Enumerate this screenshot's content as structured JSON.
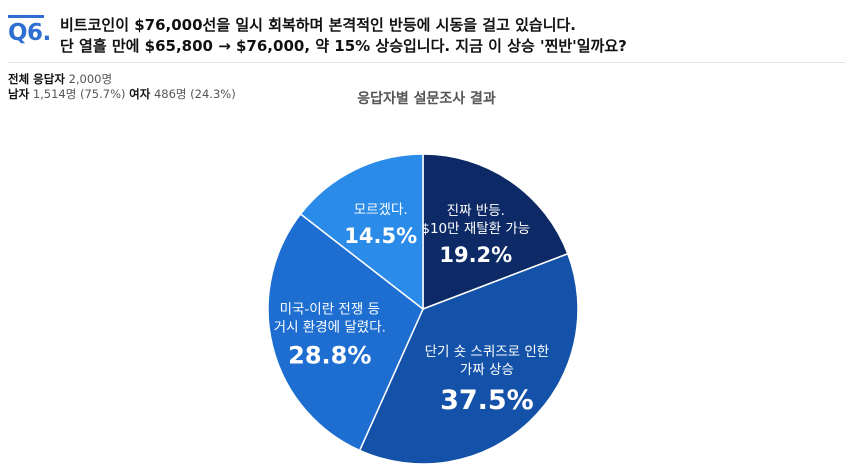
{
  "question": {
    "number": "Q6.",
    "line1": "비트코인이 $76,000선을 일시 회복하며 본격적인 반등에 시동을 걸고 있습니다.",
    "line2": "단 열흘 만에 $65,800 → $76,000, 약 15% 상승입니다. 지금 이 상승 '찐반'일까요?"
  },
  "respondents": {
    "total_label": "전체 응답자",
    "total_value": "2,000명",
    "male_label": "남자",
    "male_value": "1,514명 (75.7%)",
    "female_label": "여자",
    "female_value": "486명 (24.3%)"
  },
  "chart_data": {
    "type": "pie",
    "title": "응답자별 설문조사 결과",
    "slices": [
      {
        "label_lines": [
          "진짜 반등.",
          "$10만 재탈환 가능"
        ],
        "value": 19.2,
        "value_label": "19.2%",
        "color": "#0d2a66"
      },
      {
        "label_lines": [
          "단기 숏 스퀴즈로 인한",
          "가짜 상승"
        ],
        "value": 37.5,
        "value_label": "37.5%",
        "color": "#1352a8"
      },
      {
        "label_lines": [
          "미국-이란 전쟁 등",
          "거시 환경에 달렸다."
        ],
        "value": 28.8,
        "value_label": "28.8%",
        "color": "#1d6ed0"
      },
      {
        "label_lines": [
          "모르겠다."
        ],
        "value": 14.5,
        "value_label": "14.5%",
        "color": "#2a8be8"
      }
    ],
    "start_angle": "12 o'clock",
    "direction": "clockwise",
    "legend": "none (labels inside slices)"
  }
}
